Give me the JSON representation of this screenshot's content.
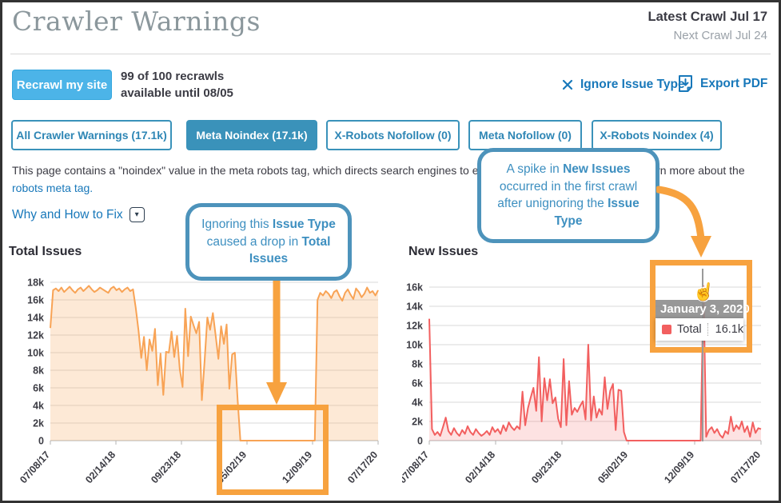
{
  "page": {
    "title": "Crawler Warnings",
    "latest_crawl": "Latest Crawl Jul 17",
    "next_crawl": "Next Crawl Jul 24"
  },
  "toolbar": {
    "recrawl_button": "Recrawl my site",
    "recrawl_info_line1": "99 of 100 recrawls",
    "recrawl_info_line2": "available until 08/05",
    "ignore_label": "Ignore Issue Type",
    "export_label": "Export PDF"
  },
  "tabs": [
    {
      "label": "All Crawler Warnings (17.1k)",
      "active": false
    },
    {
      "label": "Meta Noindex (17.1k)",
      "active": true
    },
    {
      "label": "X-Robots Nofollow (0)",
      "active": false
    },
    {
      "label": "Meta Nofollow (0)",
      "active": false
    },
    {
      "label": "X-Robots Noindex (4)",
      "active": false
    }
  ],
  "description": {
    "segments": [
      {
        "text": "This page contains a \"noindex\" value in the meta robots tag, which directs search engines to exclude the page from the index. Learn more about the ",
        "link": false
      },
      {
        "text": "robots meta tag.",
        "link": true
      }
    ]
  },
  "why_link": "Why and How to Fix",
  "callouts": [
    {
      "segments": [
        {
          "text": "Ignoring this ",
          "bold": false
        },
        {
          "text": "Issue Type",
          "bold": true
        },
        {
          "text": " caused a drop in ",
          "bold": false
        },
        {
          "text": "Total Issues",
          "bold": true
        }
      ]
    },
    {
      "segments": [
        {
          "text": "A spike in ",
          "bold": false
        },
        {
          "text": "New Issues",
          "bold": true
        },
        {
          "text": " occurred in the first crawl after unignoring the ",
          "bold": false
        },
        {
          "text": "Issue Type",
          "bold": true
        }
      ]
    }
  ],
  "tooltip": {
    "date": "January 3, 2020",
    "series": "Total",
    "value": "16.1k"
  },
  "icons": {
    "caret": "▾",
    "cursor_hand": "☝"
  },
  "colors": {
    "tab_teal": "#3a92ba",
    "link_blue": "#1878ba",
    "callout_blue": "#4d93bb",
    "highlight_orange": "#f7a23f",
    "total_line": "#f8a355",
    "total_fill": "rgba(248,163,85,0.24)",
    "new_line": "#f25f5f",
    "new_fill": "rgba(242,95,95,0.18)"
  },
  "chart_data": [
    {
      "type": "area",
      "title": "Total Issues",
      "series_name": "Total",
      "categories": [
        "07/08/17",
        "02/14/18",
        "09/23/18",
        "05/02/19",
        "12/09/19",
        "07/17/20"
      ],
      "y_ticks": [
        "0",
        "2k",
        "4k",
        "6k",
        "8k",
        "10k",
        "12k",
        "14k",
        "16k",
        "18k"
      ],
      "ylim": [
        0,
        18
      ],
      "unit": "k",
      "grid": true,
      "legend": "none",
      "values": [
        12.8,
        17.1,
        17.3,
        17.0,
        17.4,
        16.9,
        17.2,
        17.5,
        17.1,
        16.8,
        17.2,
        17.4,
        17.0,
        17.3,
        17.6,
        17.2,
        16.9,
        17.1,
        17.4,
        17.2,
        17.0,
        16.8,
        17.3,
        17.5,
        17.1,
        17.3,
        16.9,
        17.2,
        17.4,
        17.0,
        17.2,
        15.1,
        12.5,
        9.4,
        11.8,
        8.0,
        11.5,
        10.2,
        12.7,
        6.3,
        9.9,
        5.2,
        10.1,
        10.0,
        12.4,
        9.5,
        11.9,
        8.1,
        6.1,
        15.0,
        9.6,
        14.1,
        13.1,
        12.2,
        13.5,
        4.6,
        9.0,
        14.0,
        12.6,
        14.5,
        12.0,
        9.3,
        13.0,
        11.0,
        13.2,
        5.9,
        9.8,
        10.0,
        4.6,
        0,
        0,
        0,
        0,
        0,
        0,
        0,
        0,
        0,
        0,
        0,
        0,
        0,
        0,
        0,
        0,
        0,
        0,
        0,
        0,
        0,
        0,
        0,
        0,
        0,
        0,
        0,
        0,
        16.0,
        16.8,
        16.5,
        17.0,
        16.7,
        16.2,
        16.9,
        17.1,
        16.4,
        15.9,
        16.8,
        17.2,
        16.6,
        16.1,
        17.3,
        16.9,
        16.3,
        16.7,
        17.4,
        16.8,
        17.0,
        16.5,
        17.1
      ]
    },
    {
      "type": "area",
      "title": "New Issues",
      "series_name": "Total",
      "categories": [
        "07/08/17",
        "02/14/18",
        "09/23/18",
        "05/02/19",
        "12/09/19",
        "07/17/20"
      ],
      "y_ticks": [
        "0",
        "2k",
        "4k",
        "6k",
        "8k",
        "10k",
        "12k",
        "14k",
        "16k"
      ],
      "ylim": [
        0,
        16
      ],
      "unit": "k",
      "grid": true,
      "legend": "none",
      "annotation": {
        "date": "January 3, 2020",
        "value": 16.1
      },
      "values": [
        12.7,
        1.2,
        0.6,
        0.9,
        0.5,
        1.4,
        2.4,
        1.0,
        0.6,
        1.3,
        0.8,
        0.5,
        1.1,
        0.7,
        1.5,
        0.9,
        0.6,
        1.2,
        0.8,
        0.5,
        0.7,
        1.0,
        0.6,
        1.4,
        0.9,
        1.2,
        0.7,
        1.6,
        1.0,
        1.9,
        1.4,
        1.1,
        1.5,
        1.2,
        5.1,
        1.6,
        3.4,
        4.5,
        5.5,
        3.1,
        8.7,
        2.0,
        6.5,
        4.2,
        6.4,
        3.9,
        4.5,
        2.3,
        1.4,
        8.5,
        1.6,
        6.2,
        2.7,
        3.4,
        3.0,
        3.6,
        4.1,
        2.2,
        10.0,
        2.1,
        4.6,
        2.4,
        3.3,
        2.7,
        6.6,
        3.3,
        5.2,
        5.9,
        1.1,
        5.3,
        5.2,
        0.9,
        0,
        0,
        0,
        0,
        0,
        0,
        0,
        0,
        0,
        0,
        0,
        0,
        0,
        0,
        0,
        0,
        0,
        0,
        0,
        0,
        0,
        0,
        0,
        0,
        0,
        0,
        0,
        0,
        16.1,
        0.4,
        1.1,
        1.4,
        0.8,
        1.2,
        0.6,
        0.3,
        1.0,
        0.7,
        2.5,
        1.0,
        1.6,
        1.2,
        2.0,
        0.9,
        1.5,
        0.4,
        1.9,
        0.8,
        1.3,
        1.2
      ]
    }
  ]
}
